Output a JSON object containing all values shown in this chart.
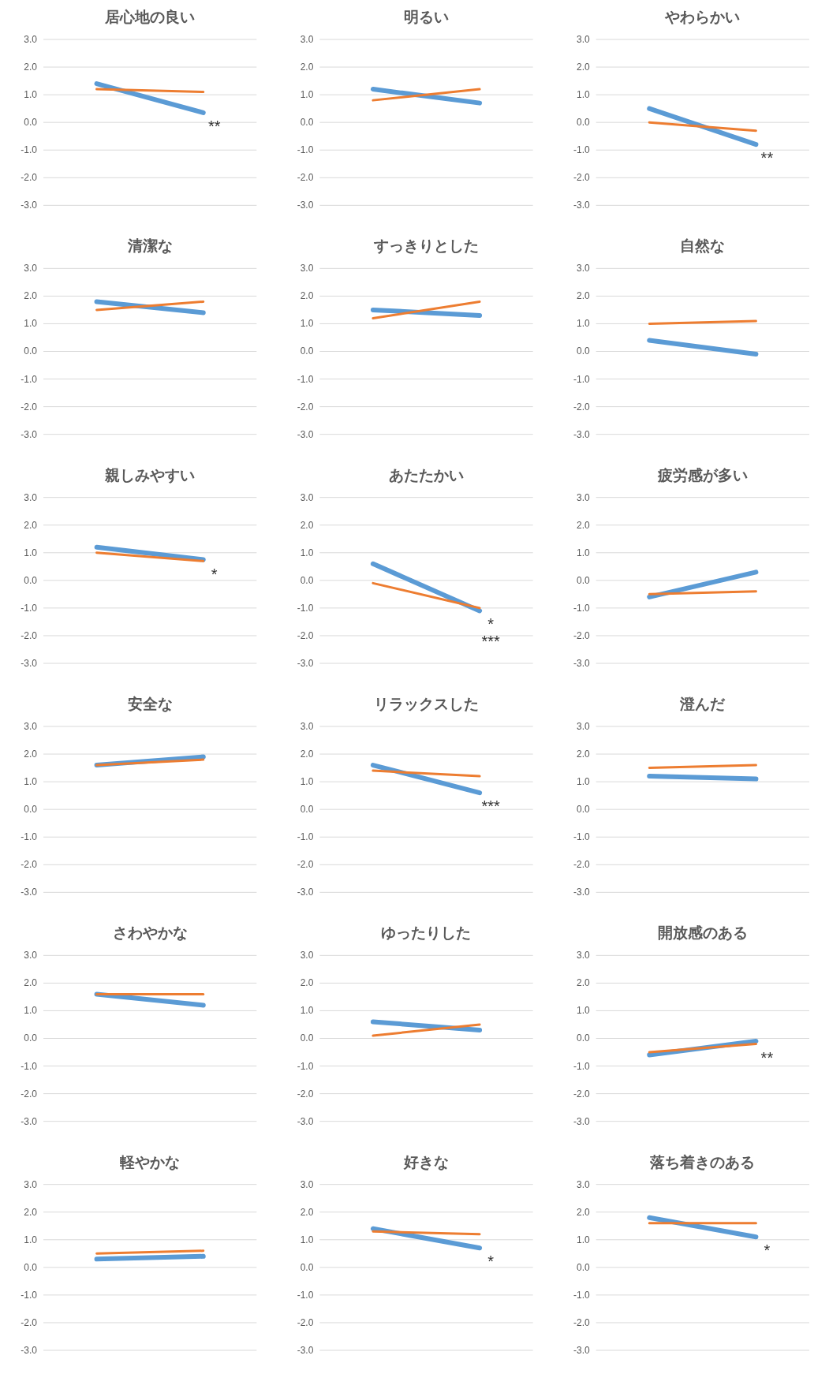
{
  "chart_data": [
    {
      "type": "line",
      "title": "居心地の良い",
      "categories": [
        null,
        null
      ],
      "ylim": [
        -3,
        3
      ],
      "yticks": [
        {
          "value": 3,
          "label": "3.0"
        },
        {
          "value": 2,
          "label": "2.0"
        },
        {
          "value": 1,
          "label": "1.0"
        },
        {
          "value": 0,
          "label": "0.0"
        },
        {
          "value": -1,
          "label": "-1.0"
        },
        {
          "value": -2,
          "label": "-2.0"
        },
        {
          "value": -3,
          "label": "-3.0"
        }
      ],
      "grid": "y",
      "series": [
        {
          "color": "#5b9bd5",
          "values": [
            1.4,
            0.35
          ]
        },
        {
          "color": "#ed7d31",
          "values": [
            1.2,
            1.1
          ]
        }
      ],
      "annotations": [
        "**"
      ]
    },
    {
      "type": "line",
      "title": "明るい",
      "categories": [
        null,
        null
      ],
      "ylim": [
        -3,
        3
      ],
      "yticks": [
        {
          "value": 3,
          "label": "3.0"
        },
        {
          "value": 2,
          "label": "2.0"
        },
        {
          "value": 1,
          "label": "1.0"
        },
        {
          "value": 0,
          "label": "0.0"
        },
        {
          "value": -1,
          "label": "-1.0"
        },
        {
          "value": -2,
          "label": "-2.0"
        },
        {
          "value": -3,
          "label": "-3.0"
        }
      ],
      "grid": "y",
      "series": [
        {
          "color": "#5b9bd5",
          "values": [
            1.2,
            0.7
          ]
        },
        {
          "color": "#ed7d31",
          "values": [
            0.8,
            1.2
          ]
        }
      ]
    },
    {
      "type": "line",
      "title": "やわらかい",
      "categories": [
        null,
        null
      ],
      "ylim": [
        -3,
        3
      ],
      "yticks": [
        {
          "value": 3,
          "label": "3.0"
        },
        {
          "value": 2,
          "label": "2.0"
        },
        {
          "value": 1,
          "label": "1.0"
        },
        {
          "value": 0,
          "label": "0.0"
        },
        {
          "value": -1,
          "label": "-1.0"
        },
        {
          "value": -2,
          "label": "-2.0"
        },
        {
          "value": -3,
          "label": "-3.0"
        }
      ],
      "grid": "y",
      "series": [
        {
          "color": "#5b9bd5",
          "values": [
            0.5,
            -0.8
          ]
        },
        {
          "color": "#ed7d31",
          "values": [
            0.0,
            -0.3
          ]
        }
      ],
      "annotations": [
        "**"
      ]
    },
    {
      "type": "line",
      "title": "清潔な",
      "categories": [
        null,
        null
      ],
      "ylim": [
        -3,
        3
      ],
      "yticks": [
        {
          "value": 3,
          "label": "3.0"
        },
        {
          "value": 2,
          "label": "2.0"
        },
        {
          "value": 1,
          "label": "1.0"
        },
        {
          "value": 0,
          "label": "0.0"
        },
        {
          "value": -1,
          "label": "-1.0"
        },
        {
          "value": -2,
          "label": "-2.0"
        },
        {
          "value": -3,
          "label": "-3.0"
        }
      ],
      "grid": "y",
      "series": [
        {
          "color": "#5b9bd5",
          "values": [
            1.8,
            1.4
          ]
        },
        {
          "color": "#ed7d31",
          "values": [
            1.5,
            1.8
          ]
        }
      ]
    },
    {
      "type": "line",
      "title": "すっきりとした",
      "categories": [
        null,
        null
      ],
      "ylim": [
        -3,
        3
      ],
      "yticks": [
        {
          "value": 3,
          "label": "3.0"
        },
        {
          "value": 2,
          "label": "2.0"
        },
        {
          "value": 1,
          "label": "1.0"
        },
        {
          "value": 0,
          "label": "0.0"
        },
        {
          "value": -1,
          "label": "-1.0"
        },
        {
          "value": -2,
          "label": "-2.0"
        },
        {
          "value": -3,
          "label": "-3.0"
        }
      ],
      "grid": "y",
      "series": [
        {
          "color": "#5b9bd5",
          "values": [
            1.5,
            1.3
          ]
        },
        {
          "color": "#ed7d31",
          "values": [
            1.2,
            1.8
          ]
        }
      ]
    },
    {
      "type": "line",
      "title": "自然な",
      "categories": [
        null,
        null
      ],
      "ylim": [
        -3,
        3
      ],
      "yticks": [
        {
          "value": 3,
          "label": "3.0"
        },
        {
          "value": 2,
          "label": "2.0"
        },
        {
          "value": 1,
          "label": "1.0"
        },
        {
          "value": 0,
          "label": "0.0"
        },
        {
          "value": -1,
          "label": "-1.0"
        },
        {
          "value": -2,
          "label": "-2.0"
        },
        {
          "value": -3,
          "label": "-3.0"
        }
      ],
      "grid": "y",
      "series": [
        {
          "color": "#5b9bd5",
          "values": [
            0.4,
            -0.1
          ]
        },
        {
          "color": "#ed7d31",
          "values": [
            1.0,
            1.1
          ]
        }
      ]
    },
    {
      "type": "line",
      "title": "親しみやすい",
      "categories": [
        null,
        null
      ],
      "ylim": [
        -3,
        3
      ],
      "yticks": [
        {
          "value": 3,
          "label": "3.0"
        },
        {
          "value": 2,
          "label": "2.0"
        },
        {
          "value": 1,
          "label": "1.0"
        },
        {
          "value": 0,
          "label": "0.0"
        },
        {
          "value": -1,
          "label": "-1.0"
        },
        {
          "value": -2,
          "label": "-2.0"
        },
        {
          "value": -3,
          "label": "-3.0"
        }
      ],
      "grid": "y",
      "series": [
        {
          "color": "#5b9bd5",
          "values": [
            1.2,
            0.75
          ]
        },
        {
          "color": "#ed7d31",
          "values": [
            1.0,
            0.7
          ]
        }
      ],
      "annotations": [
        "*"
      ]
    },
    {
      "type": "line",
      "title": "あたたかい",
      "categories": [
        null,
        null
      ],
      "ylim": [
        -3,
        3
      ],
      "yticks": [
        {
          "value": 3,
          "label": "3.0"
        },
        {
          "value": 2,
          "label": "2.0"
        },
        {
          "value": 1,
          "label": "1.0"
        },
        {
          "value": 0,
          "label": "0.0"
        },
        {
          "value": -1,
          "label": "-1.0"
        },
        {
          "value": -2,
          "label": "-2.0"
        },
        {
          "value": -3,
          "label": "-3.0"
        }
      ],
      "grid": "y",
      "series": [
        {
          "color": "#5b9bd5",
          "values": [
            0.6,
            -1.1
          ]
        },
        {
          "color": "#ed7d31",
          "values": [
            -0.1,
            -1.0
          ]
        }
      ],
      "annotations": [
        "*",
        "***"
      ]
    },
    {
      "type": "line",
      "title": "疲労感が多い",
      "categories": [
        null,
        null
      ],
      "ylim": [
        -3,
        3
      ],
      "yticks": [
        {
          "value": 3,
          "label": "3.0"
        },
        {
          "value": 2,
          "label": "2.0"
        },
        {
          "value": 1,
          "label": "1.0"
        },
        {
          "value": 0,
          "label": "0.0"
        },
        {
          "value": -1,
          "label": "-1.0"
        },
        {
          "value": -2,
          "label": "-2.0"
        },
        {
          "value": -3,
          "label": "-3.0"
        }
      ],
      "grid": "y",
      "series": [
        {
          "color": "#5b9bd5",
          "values": [
            -0.6,
            0.3
          ]
        },
        {
          "color": "#ed7d31",
          "values": [
            -0.5,
            -0.4
          ]
        }
      ]
    },
    {
      "type": "line",
      "title": "安全な",
      "categories": [
        null,
        null
      ],
      "ylim": [
        -3,
        3
      ],
      "yticks": [
        {
          "value": 3,
          "label": "3.0"
        },
        {
          "value": 2,
          "label": "2.0"
        },
        {
          "value": 1,
          "label": "1.0"
        },
        {
          "value": 0,
          "label": "0.0"
        },
        {
          "value": -1,
          "label": "-1.0"
        },
        {
          "value": -2,
          "label": "-2.0"
        },
        {
          "value": -3,
          "label": "-3.0"
        }
      ],
      "grid": "y",
      "series": [
        {
          "color": "#5b9bd5",
          "values": [
            1.6,
            1.9
          ]
        },
        {
          "color": "#ed7d31",
          "values": [
            1.6,
            1.8
          ]
        }
      ]
    },
    {
      "type": "line",
      "title": "リラックスした",
      "categories": [
        null,
        null
      ],
      "ylim": [
        -3,
        3
      ],
      "yticks": [
        {
          "value": 3,
          "label": "3.0"
        },
        {
          "value": 2,
          "label": "2.0"
        },
        {
          "value": 1,
          "label": "1.0"
        },
        {
          "value": 0,
          "label": "0.0"
        },
        {
          "value": -1,
          "label": "-1.0"
        },
        {
          "value": -2,
          "label": "-2.0"
        },
        {
          "value": -3,
          "label": "-3.0"
        }
      ],
      "grid": "y",
      "series": [
        {
          "color": "#5b9bd5",
          "values": [
            1.6,
            0.6
          ]
        },
        {
          "color": "#ed7d31",
          "values": [
            1.4,
            1.2
          ]
        }
      ],
      "annotations": [
        "***"
      ]
    },
    {
      "type": "line",
      "title": "澄んだ",
      "categories": [
        null,
        null
      ],
      "ylim": [
        -3,
        3
      ],
      "yticks": [
        {
          "value": 3,
          "label": "3.0"
        },
        {
          "value": 2,
          "label": "2.0"
        },
        {
          "value": 1,
          "label": "1.0"
        },
        {
          "value": 0,
          "label": "0.0"
        },
        {
          "value": -1,
          "label": "-1.0"
        },
        {
          "value": -2,
          "label": "-2.0"
        },
        {
          "value": -3,
          "label": "-3.0"
        }
      ],
      "grid": "y",
      "series": [
        {
          "color": "#5b9bd5",
          "values": [
            1.2,
            1.1
          ]
        },
        {
          "color": "#ed7d31",
          "values": [
            1.5,
            1.6
          ]
        }
      ]
    },
    {
      "type": "line",
      "title": "さわやかな",
      "categories": [
        null,
        null
      ],
      "ylim": [
        -3,
        3
      ],
      "yticks": [
        {
          "value": 3,
          "label": "3.0"
        },
        {
          "value": 2,
          "label": "2.0"
        },
        {
          "value": 1,
          "label": "1.0"
        },
        {
          "value": 0,
          "label": "0.0"
        },
        {
          "value": -1,
          "label": "-1.0"
        },
        {
          "value": -2,
          "label": "-2.0"
        },
        {
          "value": -3,
          "label": "-3.0"
        }
      ],
      "grid": "y",
      "series": [
        {
          "color": "#5b9bd5",
          "values": [
            1.6,
            1.2
          ]
        },
        {
          "color": "#ed7d31",
          "values": [
            1.6,
            1.6
          ]
        }
      ]
    },
    {
      "type": "line",
      "title": "ゆったりした",
      "categories": [
        null,
        null
      ],
      "ylim": [
        -3,
        3
      ],
      "yticks": [
        {
          "value": 3,
          "label": "3.0"
        },
        {
          "value": 2,
          "label": "2.0"
        },
        {
          "value": 1,
          "label": "1.0"
        },
        {
          "value": 0,
          "label": "0.0"
        },
        {
          "value": -1,
          "label": "-1.0"
        },
        {
          "value": -2,
          "label": "-2.0"
        },
        {
          "value": -3,
          "label": "-3.0"
        }
      ],
      "grid": "y",
      "series": [
        {
          "color": "#5b9bd5",
          "values": [
            0.6,
            0.3
          ]
        },
        {
          "color": "#ed7d31",
          "values": [
            0.1,
            0.5
          ]
        }
      ]
    },
    {
      "type": "line",
      "title": "開放感のある",
      "categories": [
        null,
        null
      ],
      "ylim": [
        -3,
        3
      ],
      "yticks": [
        {
          "value": 3,
          "label": "3.0"
        },
        {
          "value": 2,
          "label": "2.0"
        },
        {
          "value": 1,
          "label": "1.0"
        },
        {
          "value": 0,
          "label": "0.0"
        },
        {
          "value": -1,
          "label": "-1.0"
        },
        {
          "value": -2,
          "label": "-2.0"
        },
        {
          "value": -3,
          "label": "-3.0"
        }
      ],
      "grid": "y",
      "series": [
        {
          "color": "#5b9bd5",
          "values": [
            -0.6,
            -0.1
          ]
        },
        {
          "color": "#ed7d31",
          "values": [
            -0.5,
            -0.2
          ]
        }
      ],
      "annotations": [
        "**"
      ]
    },
    {
      "type": "line",
      "title": "軽やかな",
      "categories": [
        null,
        null
      ],
      "ylim": [
        -3,
        3
      ],
      "yticks": [
        {
          "value": 3,
          "label": "3.0"
        },
        {
          "value": 2,
          "label": "2.0"
        },
        {
          "value": 1,
          "label": "1.0"
        },
        {
          "value": 0,
          "label": "0.0"
        },
        {
          "value": -1,
          "label": "-1.0"
        },
        {
          "value": -2,
          "label": "-2.0"
        },
        {
          "value": -3,
          "label": "-3.0"
        }
      ],
      "grid": "y",
      "series": [
        {
          "color": "#5b9bd5",
          "values": [
            0.3,
            0.4
          ]
        },
        {
          "color": "#ed7d31",
          "values": [
            0.5,
            0.6
          ]
        }
      ]
    },
    {
      "type": "line",
      "title": "好きな",
      "categories": [
        null,
        null
      ],
      "ylim": [
        -3,
        3
      ],
      "yticks": [
        {
          "value": 3,
          "label": "3.0"
        },
        {
          "value": 2,
          "label": "2.0"
        },
        {
          "value": 1,
          "label": "1.0"
        },
        {
          "value": 0,
          "label": "0.0"
        },
        {
          "value": -1,
          "label": "-1.0"
        },
        {
          "value": -2,
          "label": "-2.0"
        },
        {
          "value": -3,
          "label": "-3.0"
        }
      ],
      "grid": "y",
      "series": [
        {
          "color": "#5b9bd5",
          "values": [
            1.4,
            0.7
          ]
        },
        {
          "color": "#ed7d31",
          "values": [
            1.3,
            1.2
          ]
        }
      ],
      "annotations": [
        "*"
      ]
    },
    {
      "type": "line",
      "title": "落ち着きのある",
      "categories": [
        null,
        null
      ],
      "ylim": [
        -3,
        3
      ],
      "yticks": [
        {
          "value": 3,
          "label": "3.0"
        },
        {
          "value": 2,
          "label": "2.0"
        },
        {
          "value": 1,
          "label": "1.0"
        },
        {
          "value": 0,
          "label": "0.0"
        },
        {
          "value": -1,
          "label": "-1.0"
        },
        {
          "value": -2,
          "label": "-2.0"
        },
        {
          "value": -3,
          "label": "-3.0"
        }
      ],
      "grid": "y",
      "series": [
        {
          "color": "#5b9bd5",
          "values": [
            1.8,
            1.1
          ]
        },
        {
          "color": "#ed7d31",
          "values": [
            1.6,
            1.6
          ]
        }
      ],
      "annotations": [
        "*"
      ]
    }
  ]
}
